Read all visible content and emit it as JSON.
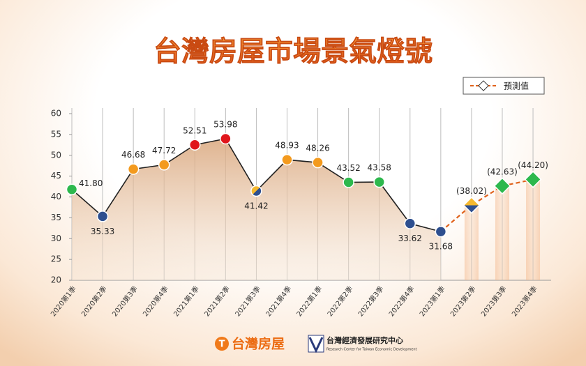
{
  "chart_data": {
    "type": "line",
    "title": "台灣房屋市場景氣燈號",
    "categories": [
      "2020第1季",
      "2020第2季",
      "2020第3季",
      "2020第4季",
      "2021第1季",
      "2021第2季",
      "2021第3季",
      "2021第4季",
      "2022第1季",
      "2022第2季",
      "2022第3季",
      "2022第4季",
      "2023第1季",
      "2023第2季",
      "2023第3季",
      "2023第4季"
    ],
    "values": [
      41.8,
      35.33,
      46.68,
      47.72,
      52.51,
      53.98,
      41.42,
      48.93,
      48.26,
      43.52,
      43.58,
      33.62,
      31.68,
      38.02,
      42.63,
      44.2
    ],
    "value_labels": [
      "41.80",
      "35.33",
      "46.68",
      "47.72",
      "52.51",
      "53.98",
      "41.42",
      "48.93",
      "48.26",
      "43.52",
      "43.58",
      "33.62",
      "31.68",
      "(38.02)",
      "(42.63)",
      "(44.20)"
    ],
    "marker_colors": [
      "#2db84d",
      "#2e4f8f",
      "#f39a1e",
      "#f39a1e",
      "#e0161b",
      "#e0161b",
      [
        "#f5b82e",
        "#2e4f8f"
      ],
      "#f39a1e",
      "#f39a1e",
      "#2db84d",
      "#2db84d",
      "#2e4f8f",
      "#2e4f8f",
      [
        "#f5b82e",
        "#2e4f8f"
      ],
      "#2db84d",
      "#2db84d"
    ],
    "forecast_from": 12,
    "forecast_color": "#e0621b",
    "line_color": "#222222",
    "legend": {
      "label": "預測值",
      "position": "upper right"
    },
    "ylim": [
      20,
      60
    ],
    "yticks": [
      20,
      25,
      30,
      35,
      40,
      45,
      50,
      55,
      60
    ],
    "grid": true
  },
  "footer": {
    "brand": "台灣房屋",
    "institute": "台灣經濟發展研究中心",
    "institute_en": "Research Center for Taiwan Economic Development"
  }
}
